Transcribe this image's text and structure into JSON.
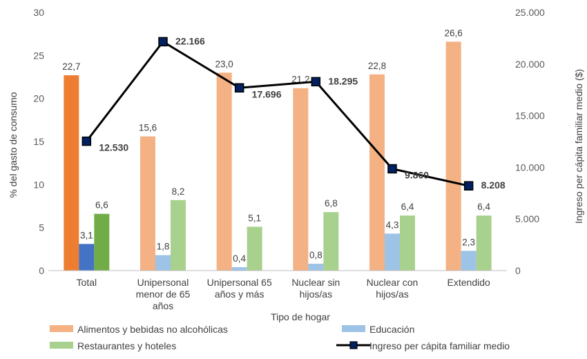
{
  "chart_data": {
    "type": "bar",
    "categories": [
      [
        "Total"
      ],
      [
        "Unipersonal",
        "menor de 65",
        "años"
      ],
      [
        "Unipersonal 65",
        "años y más"
      ],
      [
        "Nuclear sin",
        "hijos/as"
      ],
      [
        "Nuclear con",
        "hijos/as"
      ],
      [
        "Extendido"
      ]
    ],
    "xlabel": "Tipo de hogar",
    "ylabel": "% del gasto de consumo",
    "y2label": "Ingreso per cápita familiar medio ($)",
    "ylim": [
      0,
      30
    ],
    "yticks": [
      0,
      5,
      10,
      15,
      20,
      25,
      30
    ],
    "y2lim": [
      0,
      25000
    ],
    "y2ticks": [
      "0",
      "5.000",
      "10.000",
      "15.000",
      "20.000",
      "25.000"
    ],
    "series": [
      {
        "name": "Alimentos y bebidas no alcohólicas",
        "values": [
          22.7,
          15.6,
          23.0,
          21.2,
          22.8,
          26.6
        ],
        "labels": [
          "22,7",
          "15,6",
          "23,0",
          "21,2",
          "22,8",
          "26,6"
        ],
        "color": "#f4b183",
        "highlight_color": "#ed7d31"
      },
      {
        "name": "Educación",
        "values": [
          3.1,
          1.8,
          0.4,
          0.8,
          4.3,
          2.3
        ],
        "labels": [
          "3,1",
          "1,8",
          "0,4",
          "0,8",
          "4,3",
          "2,3"
        ],
        "color": "#9dc3e6",
        "highlight_color": "#4472c4"
      },
      {
        "name": "Restaurantes y hoteles",
        "values": [
          6.6,
          8.2,
          5.1,
          6.8,
          6.4,
          6.4
        ],
        "labels": [
          "6,6",
          "8,2",
          "5,1",
          "6,8",
          "6,4",
          "6,4"
        ],
        "color": "#a9d18e",
        "highlight_color": "#70ad47"
      }
    ],
    "line_series": {
      "name": "Ingreso per cápita familiar medio",
      "values": [
        12530,
        22166,
        17696,
        18295,
        9860,
        8208
      ],
      "labels": [
        "12.530",
        "22.166",
        "17.696",
        "18.295",
        "9.860",
        "8.208"
      ],
      "axis": "secondary",
      "color": "#000000",
      "marker_color": "#002060"
    },
    "grid": false,
    "legend_position": "bottom"
  }
}
